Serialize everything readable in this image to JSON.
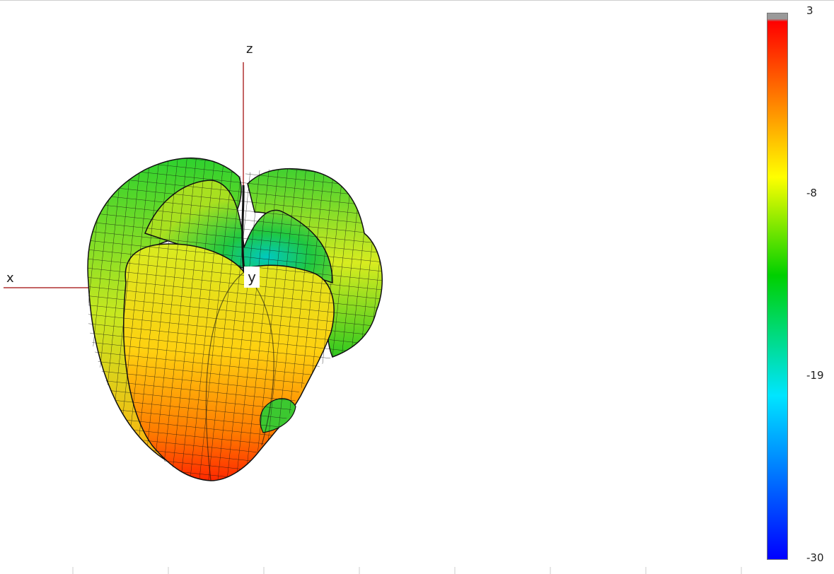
{
  "chart_data": {
    "type": "3d-radiation-pattern",
    "axes": {
      "x_label": "x",
      "y_label": "y",
      "z_label": "z"
    },
    "colorbar": {
      "min": -30,
      "max": 3,
      "ticks": [
        "3",
        "-8",
        "-19",
        "-30"
      ],
      "colormap": [
        "#0000ff",
        "#00e5ff",
        "#00d000",
        "#ffff00",
        "#ff8000",
        "#ff0000",
        "#9a9a9a"
      ]
    }
  }
}
